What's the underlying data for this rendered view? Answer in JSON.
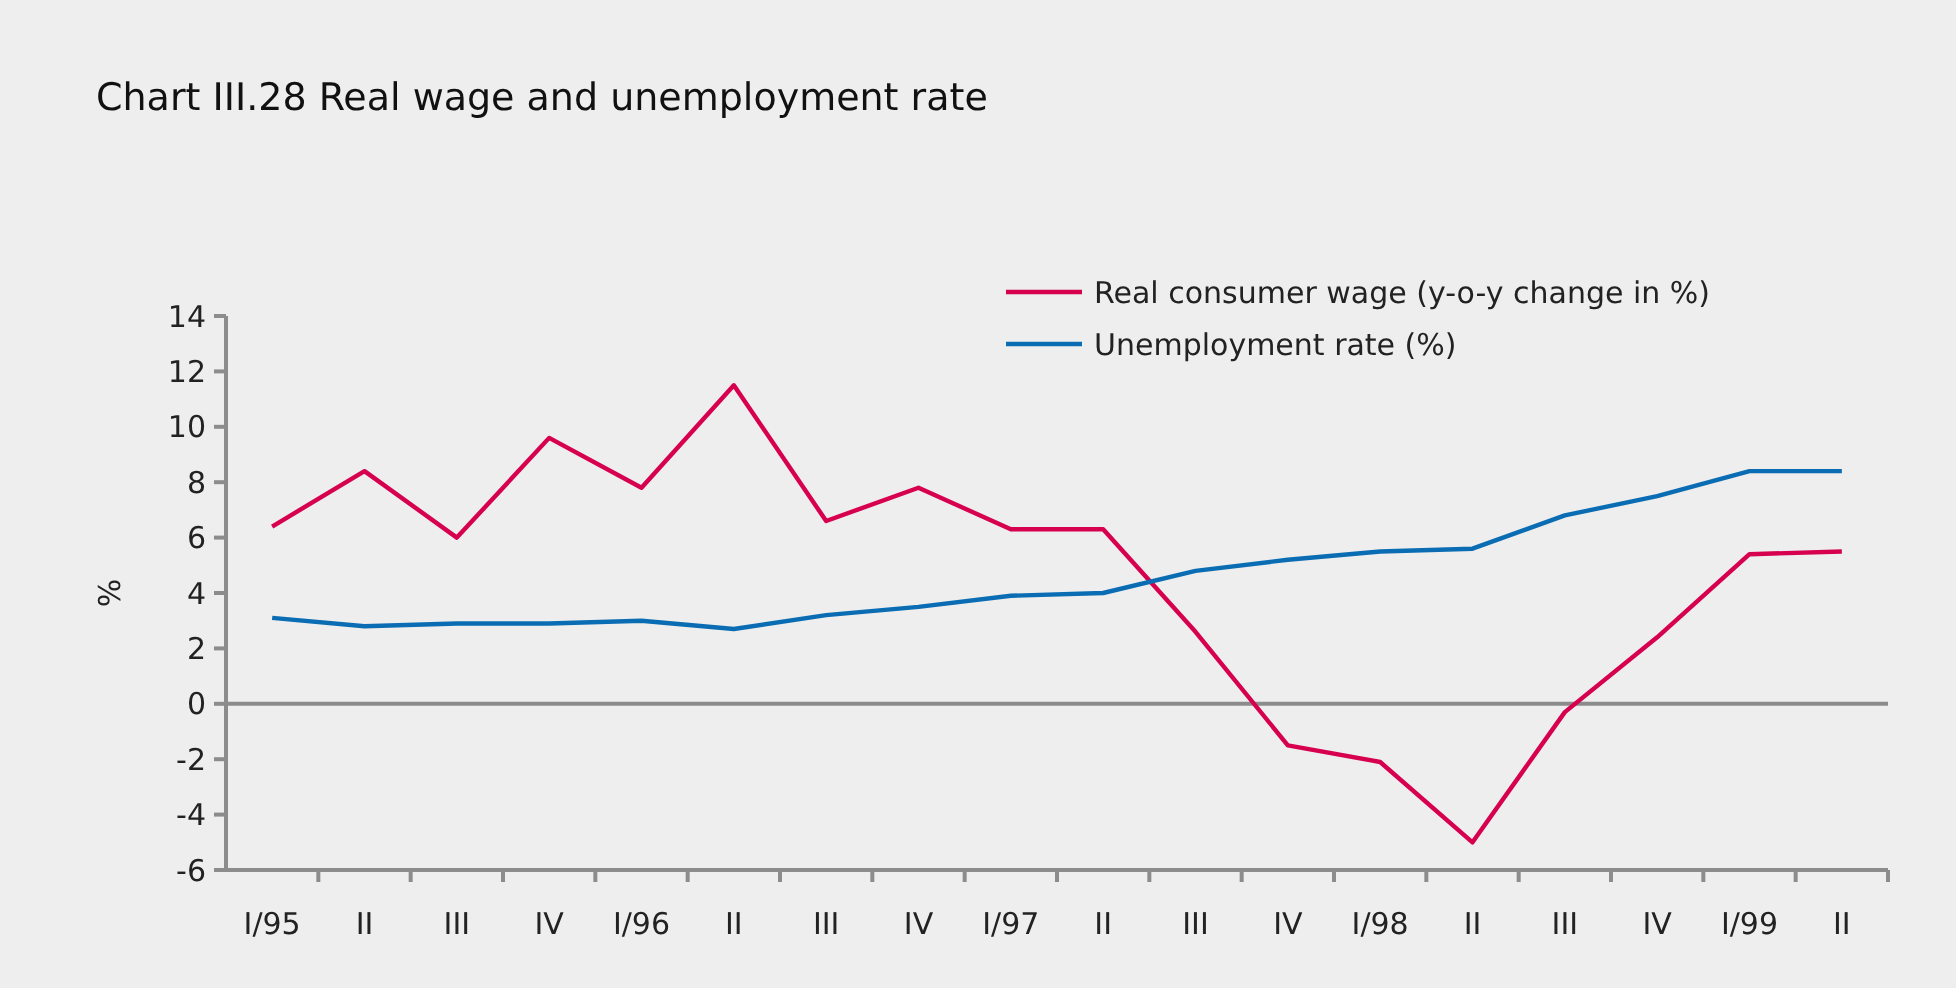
{
  "chart_data": {
    "type": "line",
    "title": "Chart III.28 Real wage and unemployment rate",
    "ylabel": "%",
    "categories": [
      "I/95",
      "II",
      "III",
      "IV",
      "I/96",
      "II",
      "III",
      "IV",
      "I/97",
      "II",
      "III",
      "IV",
      "I/98",
      "II",
      "III",
      "IV",
      "I/99",
      "II"
    ],
    "series": [
      {
        "name": "Real consumer wage (y-o-y change in %)",
        "color": "#d6004f",
        "values": [
          6.4,
          8.4,
          6.0,
          9.6,
          7.8,
          11.5,
          6.6,
          7.8,
          6.3,
          6.3,
          2.6,
          -1.5,
          -2.1,
          -5.0,
          -0.3,
          2.4,
          5.4,
          5.5
        ]
      },
      {
        "name": "Unemployment rate (%)",
        "color": "#0a6db3",
        "values": [
          3.1,
          2.8,
          2.9,
          2.9,
          3.0,
          2.7,
          3.2,
          3.5,
          3.9,
          4.0,
          4.8,
          5.2,
          5.5,
          5.6,
          6.8,
          7.5,
          8.4,
          8.4
        ]
      }
    ],
    "ylim": [
      -6,
      14
    ],
    "yticks": [
      -6,
      -4,
      -2,
      0,
      2,
      4,
      6,
      8,
      10,
      12,
      14
    ],
    "grid": false,
    "legend": "top right",
    "marker": "none",
    "line_style": "solid",
    "ref_lines": [
      {
        "axis": "y",
        "value": 0,
        "color": "#8c8c8c"
      }
    ]
  }
}
